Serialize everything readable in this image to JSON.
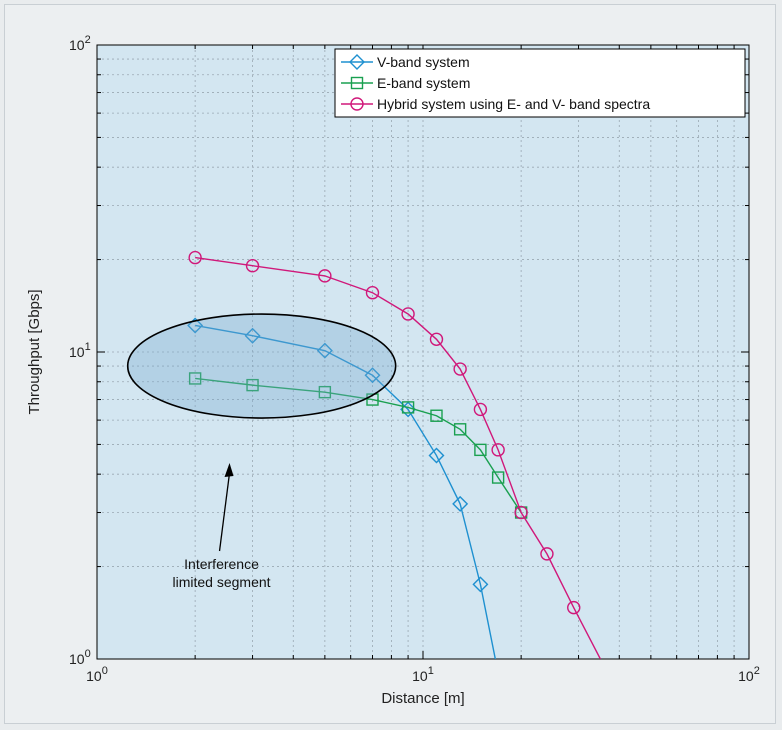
{
  "chart_data": {
    "type": "line",
    "xlabel": "Distance [m]",
    "ylabel": "Throughput [Gbps]",
    "xscale": "log",
    "yscale": "log",
    "xlim": [
      1,
      100
    ],
    "ylim": [
      1,
      100
    ],
    "grid": true,
    "legend_position": "top-right",
    "x_ticks": [
      {
        "value": 1,
        "base": "10",
        "exp": "0"
      },
      {
        "value": 10,
        "base": "10",
        "exp": "1"
      },
      {
        "value": 100,
        "base": "10",
        "exp": "2"
      }
    ],
    "y_ticks": [
      {
        "value": 1,
        "base": "10",
        "exp": "0"
      },
      {
        "value": 10,
        "base": "10",
        "exp": "1"
      },
      {
        "value": 100,
        "base": "10",
        "exp": "2"
      }
    ],
    "series": [
      {
        "name": "V-band system",
        "color": "#1e90d0",
        "marker": "diamond",
        "x": [
          2,
          3,
          5,
          7,
          9,
          11,
          13,
          15,
          17
        ],
        "y": [
          12.2,
          11.3,
          10.1,
          8.4,
          6.5,
          4.6,
          3.2,
          1.75,
          0.9
        ]
      },
      {
        "name": "E-band system",
        "color": "#1aa050",
        "marker": "square",
        "x": [
          2,
          3,
          5,
          7,
          9,
          11,
          13,
          15,
          17,
          20
        ],
        "y": [
          8.2,
          7.8,
          7.4,
          7.0,
          6.6,
          6.2,
          5.6,
          4.8,
          3.9,
          3.0
        ]
      },
      {
        "name": "Hybrid system using E- and V- band spectra",
        "color": "#d0187a",
        "marker": "circle",
        "x": [
          2,
          3,
          5,
          7,
          9,
          11,
          13,
          15,
          17,
          20,
          24,
          29,
          35
        ],
        "y": [
          20.3,
          19.1,
          17.7,
          15.6,
          13.3,
          11.0,
          8.8,
          6.5,
          4.8,
          3.0,
          2.2,
          1.47,
          1.0
        ],
        "marker_count": 12
      }
    ],
    "annotation": {
      "text_line1": "Interference",
      "text_line2": "limited segment",
      "ellipse_center": [
        3.2,
        9.0
      ],
      "arrow_target": [
        2.55,
        4.35
      ]
    }
  }
}
